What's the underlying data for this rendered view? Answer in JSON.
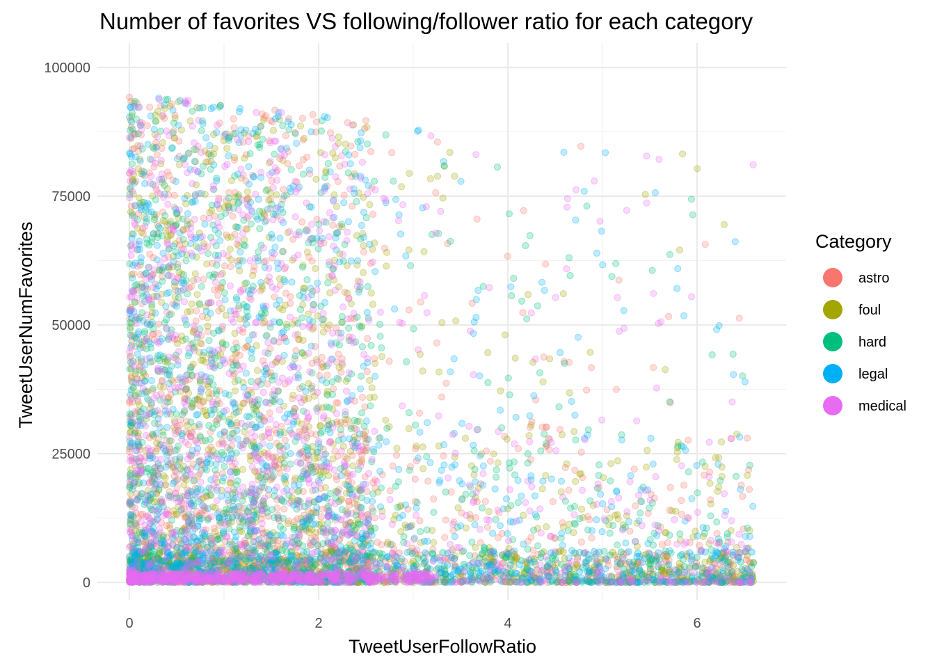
{
  "chart_data": {
    "type": "scatter",
    "title": "Number of favorites VS following/follower ratio for each category",
    "xlabel": "TweetUserFollowRatio",
    "ylabel": "TweetUserNumFavorites",
    "xlim": [
      -0.1,
      6.85
    ],
    "ylim": [
      -1500,
      102000
    ],
    "x_ticks": [
      0,
      2,
      4,
      6
    ],
    "x_tick_labels": [
      "0",
      "2",
      "4",
      "6"
    ],
    "y_ticks": [
      0,
      25000,
      50000,
      75000,
      100000
    ],
    "y_tick_labels": [
      "0",
      "25000",
      "50000",
      "75000",
      "100000"
    ],
    "grid": true,
    "point_alpha": 0.25,
    "legend": {
      "title": "Category",
      "placement": "right"
    },
    "series": [
      {
        "name": "astro",
        "color": "#F8766D",
        "x_range": [
          0,
          6.6
        ],
        "y_range": [
          0,
          100000
        ]
      },
      {
        "name": "foul",
        "color": "#A3A500",
        "x_range": [
          0,
          6.6
        ],
        "y_range": [
          0,
          100000
        ]
      },
      {
        "name": "hard",
        "color": "#00BF7D",
        "x_range": [
          0,
          6.6
        ],
        "y_range": [
          0,
          100000
        ]
      },
      {
        "name": "legal",
        "color": "#00B0F6",
        "x_range": [
          0,
          6.6
        ],
        "y_range": [
          0,
          100000
        ]
      },
      {
        "name": "medical",
        "color": "#E76BF3",
        "x_range": [
          0,
          6.6
        ],
        "y_range": [
          0,
          100000
        ]
      }
    ]
  }
}
